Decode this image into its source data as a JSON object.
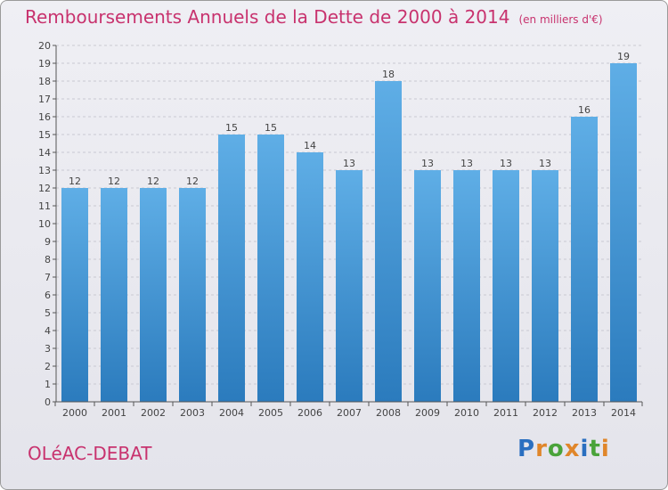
{
  "chart_data": {
    "type": "bar",
    "title": "Remboursements Annuels de la Dette de 2000 à 2014",
    "unit_note": "(en milliers d'€)",
    "categories": [
      "2000",
      "2001",
      "2002",
      "2003",
      "2004",
      "2005",
      "2006",
      "2007",
      "2008",
      "2009",
      "2010",
      "2011",
      "2012",
      "2013",
      "2014"
    ],
    "values": [
      12,
      12,
      12,
      12,
      15,
      15,
      14,
      13,
      18,
      13,
      13,
      13,
      13,
      16,
      19
    ],
    "ylim": [
      0,
      20
    ],
    "yticks": [
      0,
      1,
      2,
      3,
      4,
      5,
      6,
      7,
      8,
      9,
      10,
      11,
      12,
      13,
      14,
      15,
      16,
      17,
      18,
      19,
      20
    ],
    "xlabel": "",
    "ylabel": "",
    "grid": true,
    "bar_color_top": "#5faee6",
    "bar_color_bottom": "#2b7bbd"
  },
  "footer": {
    "commune": "OLéAC-DEBAT",
    "logo_letters": [
      {
        "ch": "P",
        "color": "#2a6fc0"
      },
      {
        "ch": "r",
        "color": "#e0862a"
      },
      {
        "ch": "o",
        "color": "#4aa33a"
      },
      {
        "ch": "x",
        "color": "#e0862a"
      },
      {
        "ch": "i",
        "color": "#2a6fc0"
      },
      {
        "ch": "t",
        "color": "#4aa33a"
      },
      {
        "ch": "i",
        "color": "#e0862a"
      }
    ]
  }
}
